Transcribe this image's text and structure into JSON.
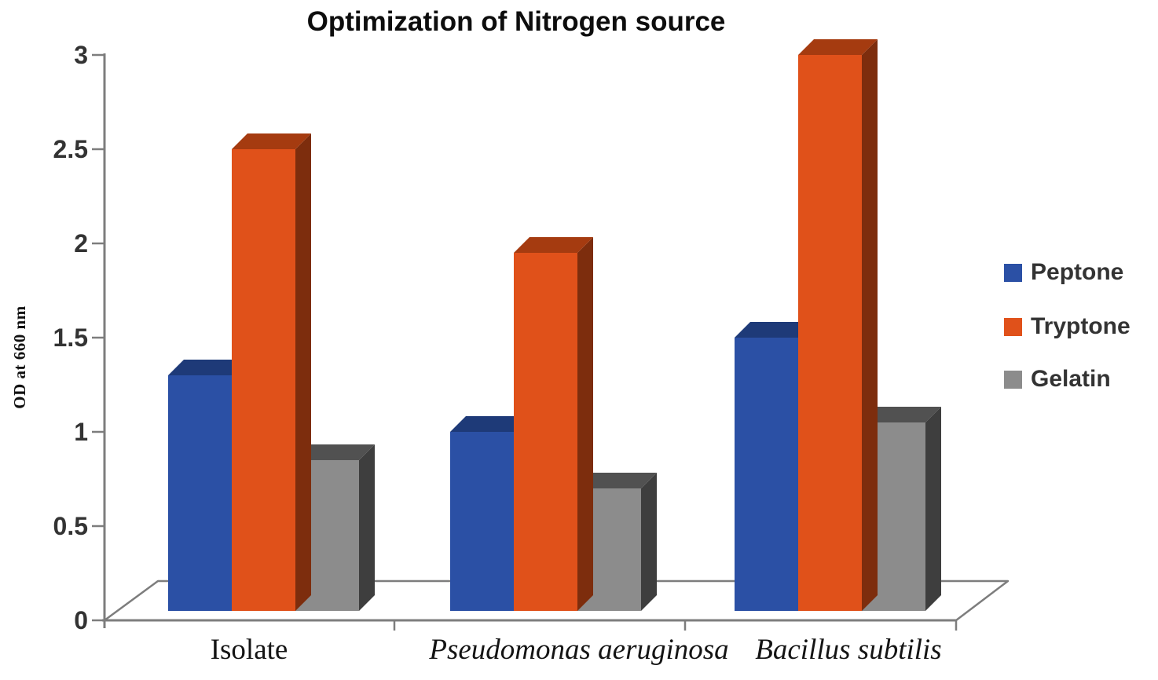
{
  "chart_data": {
    "type": "bar",
    "style": "3d-clustered-column",
    "title": "Optimization of Nitrogen source",
    "ylabel": "OD at 660 nm",
    "ylim": [
      0,
      3
    ],
    "ytick_step": 0.5,
    "yticks": [
      0,
      0.5,
      1,
      1.5,
      2,
      2.5,
      3
    ],
    "ytick_labels": [
      "0",
      "0.5",
      "1",
      "1.5",
      "2",
      "2.5",
      "3"
    ],
    "categories": [
      "Isolate",
      "Pseudomonas aeruginosa",
      "Bacillus subtilis"
    ],
    "categories_italic": [
      false,
      true,
      true
    ],
    "series": [
      {
        "name": "Peptone",
        "color": "#2B50A5",
        "color_top": "#1E3A78",
        "color_side": "#17305F",
        "values": [
          1.3,
          1.0,
          1.5
        ]
      },
      {
        "name": "Tryptone",
        "color": "#E0511A",
        "color_top": "#A53B10",
        "color_side": "#7D2D0D",
        "values": [
          2.5,
          1.95,
          3.0
        ]
      },
      {
        "name": "Gelatin",
        "color": "#8C8C8C",
        "color_top": "#515151",
        "color_side": "#3E3E3E",
        "values": [
          0.85,
          0.7,
          1.05
        ]
      }
    ],
    "legend": {
      "position": "right",
      "entries": [
        "Peptone",
        "Tryptone",
        "Gelatin"
      ]
    },
    "grid": false,
    "axis_color": "#7D7D7D",
    "text_color": "#333333",
    "background_color": "#FFFFFF"
  }
}
